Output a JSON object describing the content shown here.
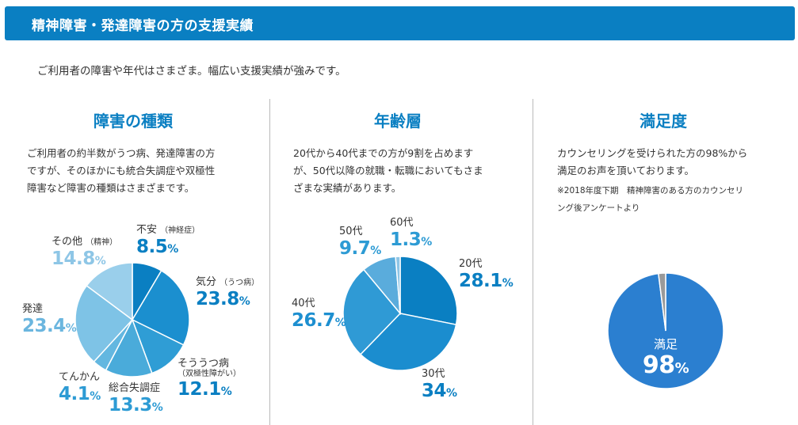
{
  "header": {
    "title": "精神障害・発達障害の方の支援実績"
  },
  "intro": "ご利用者の障害や年代はさまざま。幅広い支援実績が強みです。",
  "columns": [
    {
      "title": "障害の種類",
      "description": [
        "ご利用者の約半数がうつ病、発達障害の方",
        "ですが、そのほかにも統合失調症や双極性",
        "障害など障害の種類はさまざまです。"
      ]
    },
    {
      "title": "年齢層",
      "description": [
        "20代から40代までの方が9割を占めます",
        "が、50代以降の就職・転職においてもさま",
        "ざまな実績があります。"
      ]
    },
    {
      "title": "満足度",
      "description": [
        "カウンセリングを受けられた方の98%から",
        "満足のお声を頂いております。"
      ],
      "note": [
        "※2018年度下期　精神障害のある方のカウンセリ",
        "ング後アンケートより"
      ]
    }
  ],
  "chart_data": [
    {
      "type": "pie",
      "title": "障害の種類",
      "slices": [
        {
          "name": "不安",
          "sub": "（神経症）",
          "value": 8.5,
          "display": "8.5",
          "unit": "%",
          "color": "#0a7fc2",
          "label_color": "#0a7fc2"
        },
        {
          "name": "気分",
          "sub": "（うつ病）",
          "value": 23.8,
          "display": "23.8",
          "unit": "%",
          "color": "#1b8fcf",
          "label_color": "#0a7fc2"
        },
        {
          "name": "そううつ病",
          "sub": "（双極性障がい）",
          "value": 12.1,
          "display": "12.1",
          "unit": "%",
          "color": "#2f9dd5",
          "label_color": "#0a7fc2"
        },
        {
          "name": "総合失調症",
          "sub": "",
          "value": 13.3,
          "display": "13.3",
          "unit": "%",
          "color": "#4aabda",
          "label_color": "#2d9bd4"
        },
        {
          "name": "てんかん",
          "sub": "",
          "value": 4.1,
          "display": "4.1",
          "unit": "%",
          "color": "#63b7e0",
          "label_color": "#2d9bd4"
        },
        {
          "name": "発達",
          "sub": "",
          "value": 23.4,
          "display": "23.4",
          "unit": "%",
          "color": "#7ec3e6",
          "label_color": "#6bb6df"
        },
        {
          "name": "その他",
          "sub": "（精神）",
          "value": 14.8,
          "display": "14.8",
          "unit": "%",
          "color": "#9acfeb",
          "label_color": "#8ec6e6"
        }
      ]
    },
    {
      "type": "pie",
      "title": "年齢層",
      "slices": [
        {
          "name": "20代",
          "value": 28.1,
          "display": "28.1",
          "unit": "%",
          "color": "#0a7fc2",
          "label_color": "#0a7fc2"
        },
        {
          "name": "30代",
          "value": 34,
          "display": "34",
          "unit": "%",
          "color": "#1b8dcf",
          "label_color": "#0a7fc2"
        },
        {
          "name": "40代",
          "value": 26.7,
          "display": "26.7",
          "unit": "%",
          "color": "#2f9ad5",
          "label_color": "#1d8fd0"
        },
        {
          "name": "50代",
          "value": 9.7,
          "display": "9.7",
          "unit": "%",
          "color": "#5aacdc",
          "label_color": "#2d9bd4"
        },
        {
          "name": "60代",
          "value": 1.3,
          "display": "1.3",
          "unit": "%",
          "color": "#8dc5e6",
          "label_color": "#2d9bd4"
        }
      ]
    },
    {
      "type": "pie",
      "title": "満足度",
      "slices": [
        {
          "name": "満足",
          "value": 98,
          "display": "98",
          "unit": "%",
          "color": "#2b7fd0",
          "label_color": "#ffffff"
        },
        {
          "name": "",
          "value": 2,
          "color": "#9a9a9a"
        }
      ]
    }
  ]
}
